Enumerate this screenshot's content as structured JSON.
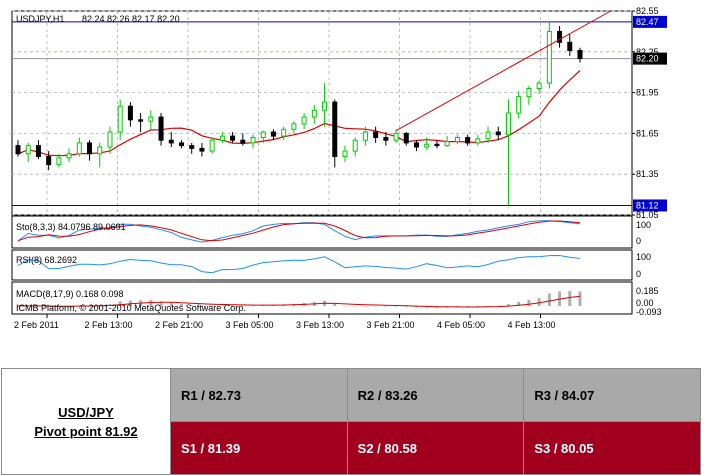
{
  "chart_data": [
    {
      "type": "candlestick",
      "title": "USDJPY,H1",
      "ohlc_label": "82.24 82.26 82.17 82.20",
      "ylim": [
        81.05,
        82.55
      ],
      "y_ticks": [
        "82.55",
        "82.25",
        "81.95",
        "81.65",
        "81.35",
        "81.05"
      ],
      "price_tags": [
        {
          "label": "82.47",
          "value": 82.47,
          "color": "#0000cc"
        },
        {
          "label": "82.20",
          "value": 82.2,
          "color": "#000000"
        },
        {
          "label": "81.12",
          "value": 81.12,
          "color": "#0000cc"
        }
      ],
      "horizontal_lines": [
        82.47,
        82.2,
        81.12
      ],
      "trendline": {
        "from": [
          37,
          81.67
        ],
        "to": [
          58,
          82.55
        ]
      },
      "x_tick_labels": [
        "2 Feb 2011",
        "2 Feb 13:00",
        "2 Feb 21:00",
        "3 Feb 05:00",
        "3 Feb 13:00",
        "3 Feb 21:00",
        "4 Feb 05:00",
        "4 Feb 13:00"
      ],
      "candles": [
        [
          81.56,
          81.6,
          81.48,
          81.5
        ],
        [
          81.5,
          81.58,
          81.44,
          81.56
        ],
        [
          81.56,
          81.6,
          81.46,
          81.48
        ],
        [
          81.48,
          81.52,
          81.38,
          81.42
        ],
        [
          81.42,
          81.5,
          81.4,
          81.47
        ],
        [
          81.47,
          81.54,
          81.44,
          81.5
        ],
        [
          81.5,
          81.62,
          81.48,
          81.58
        ],
        [
          81.58,
          81.6,
          81.45,
          81.5
        ],
        [
          81.5,
          81.58,
          81.4,
          81.55
        ],
        [
          81.55,
          81.7,
          81.5,
          81.66
        ],
        [
          81.66,
          81.9,
          81.6,
          81.85
        ],
        [
          81.85,
          81.88,
          81.7,
          81.75
        ],
        [
          81.75,
          81.8,
          81.66,
          81.74
        ],
        [
          81.74,
          81.82,
          81.68,
          81.77
        ],
        [
          81.77,
          81.8,
          81.56,
          81.6
        ],
        [
          81.6,
          81.66,
          81.55,
          81.58
        ],
        [
          81.58,
          81.6,
          81.54,
          81.56
        ],
        [
          81.56,
          81.58,
          81.5,
          81.54
        ],
        [
          81.54,
          81.58,
          81.48,
          81.52
        ],
        [
          81.52,
          81.62,
          81.5,
          81.6
        ],
        [
          81.6,
          81.66,
          81.58,
          81.63
        ],
        [
          81.63,
          81.66,
          81.58,
          81.6
        ],
        [
          81.6,
          81.65,
          81.56,
          81.58
        ],
        [
          81.58,
          81.64,
          81.54,
          81.62
        ],
        [
          81.62,
          81.67,
          81.58,
          81.66
        ],
        [
          81.66,
          81.68,
          81.6,
          81.63
        ],
        [
          81.63,
          81.7,
          81.6,
          81.68
        ],
        [
          81.68,
          81.74,
          81.65,
          81.72
        ],
        [
          81.72,
          81.8,
          81.68,
          81.77
        ],
        [
          81.77,
          81.86,
          81.72,
          81.82
        ],
        [
          81.82,
          82.02,
          81.7,
          81.88
        ],
        [
          81.88,
          81.9,
          81.4,
          81.48
        ],
        [
          81.48,
          81.56,
          81.44,
          81.52
        ],
        [
          81.52,
          81.62,
          81.48,
          81.6
        ],
        [
          81.6,
          81.7,
          81.56,
          81.66
        ],
        [
          81.66,
          81.7,
          81.58,
          81.62
        ],
        [
          81.62,
          81.66,
          81.56,
          81.6
        ],
        [
          81.6,
          81.68,
          81.58,
          81.65
        ],
        [
          81.65,
          81.66,
          81.56,
          81.58
        ],
        [
          81.58,
          81.6,
          81.52,
          81.55
        ],
        [
          81.55,
          81.62,
          81.53,
          81.57
        ],
        [
          81.57,
          81.6,
          81.54,
          81.56
        ],
        [
          81.56,
          81.63,
          81.55,
          81.59
        ],
        [
          81.59,
          81.64,
          81.57,
          81.62
        ],
        [
          81.62,
          81.64,
          81.56,
          81.58
        ],
        [
          81.58,
          81.64,
          81.56,
          81.61
        ],
        [
          81.61,
          81.7,
          81.58,
          81.66
        ],
        [
          81.66,
          81.7,
          81.6,
          81.64
        ],
        [
          81.64,
          81.9,
          81.12,
          81.8
        ],
        [
          81.8,
          81.96,
          81.76,
          81.92
        ],
        [
          81.92,
          82.0,
          81.86,
          81.98
        ],
        [
          81.98,
          82.04,
          81.94,
          82.02
        ],
        [
          82.02,
          82.47,
          81.98,
          82.4
        ],
        [
          82.4,
          82.44,
          82.28,
          82.32
        ],
        [
          82.32,
          82.38,
          82.22,
          82.26
        ],
        [
          82.26,
          82.28,
          82.17,
          82.2
        ]
      ]
    },
    {
      "type": "line",
      "title": "Sto(8,3,3) 84.0796 89.0691",
      "ylim": [
        0,
        100
      ],
      "y_ticks": [
        "100",
        "0"
      ]
    },
    {
      "type": "line",
      "title": "RSI(8) 68.2692",
      "ylim": [
        0,
        100
      ],
      "y_ticks": [
        "100",
        "0"
      ]
    },
    {
      "type": "bar",
      "title": "MACD(8,17,9) 0.168 0.098",
      "y_ticks": [
        "0.185",
        "0.00",
        "-0.093"
      ]
    }
  ],
  "copyright": "ICMB Platform, © 2001-2010 MetaQuotes Software Corp.",
  "table": {
    "symbol": "USD/JPY",
    "pivot": "Pivot point 81.92",
    "r1": "R1 / 82.73",
    "r2": "R2 / 83.26",
    "r3": "R3 / 84.07",
    "s1": "S1 / 81.39",
    "s2": "S2 / 80.58",
    "s3": "S3 / 80.05"
  },
  "colors": {
    "bull": "#00cc00",
    "bear": "#000000",
    "ma": "#dd0000",
    "sto_main": "#1e90ff",
    "rsi": "#1e90ff",
    "macd_bar": "#b0b0b0",
    "signal": "#dd0000",
    "hline": "#0000cc",
    "grid": "#b0b0b0"
  }
}
